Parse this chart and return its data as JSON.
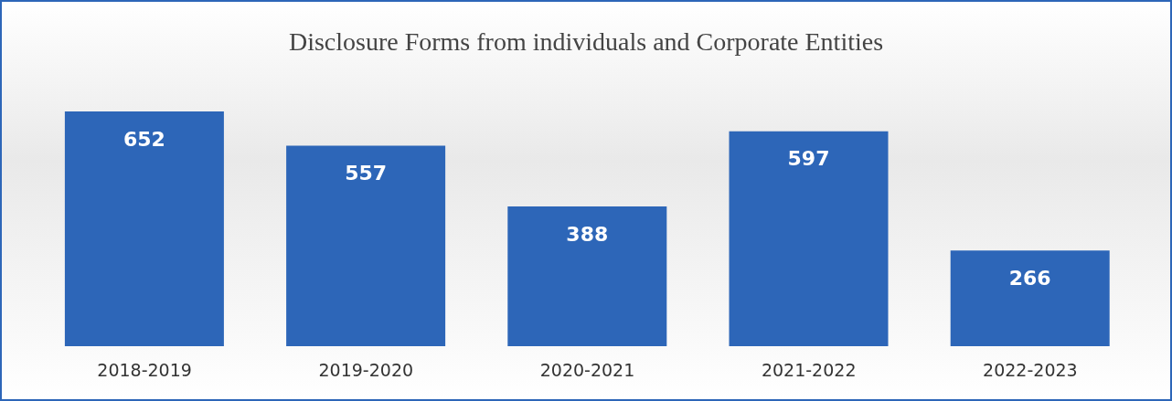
{
  "chart_data": {
    "type": "bar",
    "title": "Disclosure Forms from individuals and Corporate Entities",
    "categories": [
      "2018-2019",
      "2019-2020",
      "2020-2021",
      "2021-2022",
      "2022-2023"
    ],
    "values": [
      652,
      557,
      388,
      597,
      266
    ],
    "color": "#2d66b8",
    "data_labels": true
  }
}
